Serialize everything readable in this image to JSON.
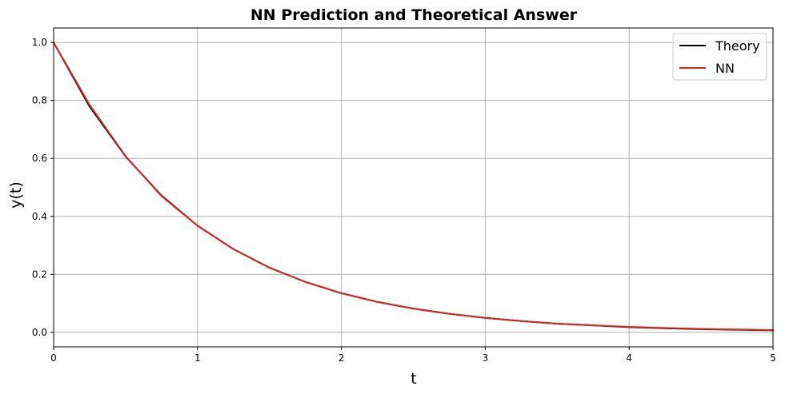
{
  "chart_data": {
    "type": "line",
    "title": "NN Prediction and Theoretical Answer",
    "xlabel": "t",
    "ylabel": "y(t)",
    "xlim": [
      0,
      5
    ],
    "ylim": [
      -0.05,
      1.05
    ],
    "xticks": [
      "0",
      "1",
      "2",
      "3",
      "4",
      "5"
    ],
    "yticks": [
      "0.0",
      "0.2",
      "0.4",
      "0.6",
      "0.8",
      "1.0"
    ],
    "grid": true,
    "legend_position": "top-right",
    "series": [
      {
        "name": "Theory",
        "color": "#000000",
        "x": [
          0,
          0.25,
          0.5,
          0.75,
          1,
          1.25,
          1.5,
          1.75,
          2,
          2.25,
          2.5,
          2.75,
          3,
          3.25,
          3.5,
          3.75,
          4,
          4.25,
          4.5,
          4.75,
          5
        ],
        "y": [
          1.0,
          0.779,
          0.607,
          0.472,
          0.368,
          0.287,
          0.223,
          0.174,
          0.135,
          0.105,
          0.082,
          0.064,
          0.05,
          0.039,
          0.03,
          0.024,
          0.018,
          0.014,
          0.011,
          0.009,
          0.007
        ]
      },
      {
        "name": "NN",
        "color": "#d62728",
        "x": [
          0,
          0.25,
          0.5,
          0.75,
          1,
          1.25,
          1.5,
          1.75,
          2,
          2.25,
          2.5,
          2.75,
          3,
          3.25,
          3.5,
          3.75,
          4,
          4.25,
          4.5,
          4.75,
          5
        ],
        "y": [
          1.0,
          0.785,
          0.608,
          0.47,
          0.368,
          0.287,
          0.223,
          0.174,
          0.135,
          0.105,
          0.082,
          0.064,
          0.05,
          0.039,
          0.03,
          0.024,
          0.019,
          0.015,
          0.012,
          0.01,
          0.008
        ]
      }
    ]
  }
}
